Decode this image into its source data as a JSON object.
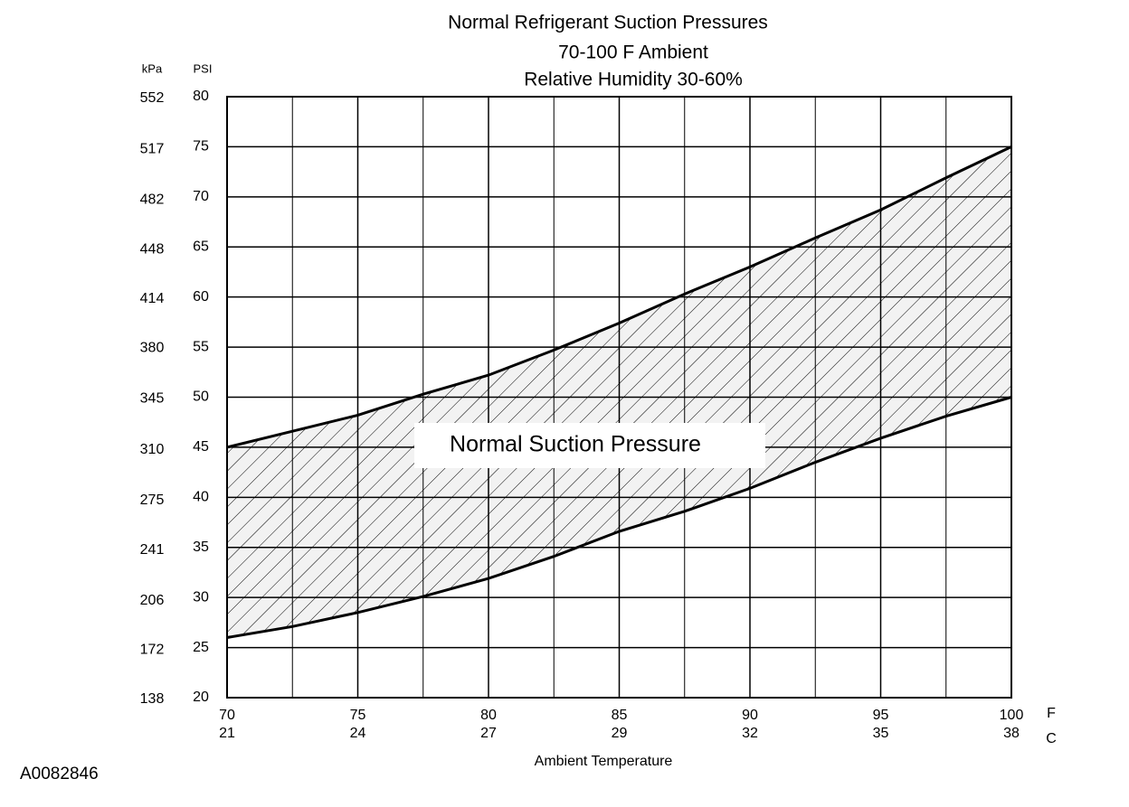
{
  "chart_data": {
    "type": "band",
    "title": [
      "Normal  Refrigerant  Suction  Pressures",
      "70-100 F Ambient",
      "Relative Humidity 30-60%"
    ],
    "annotation": "Normal Suction Pressure",
    "figure_id": "A0082846",
    "xlabel": "Ambient Temperature",
    "x_unit": "F",
    "x2_unit": "C",
    "ylabel": "PSI",
    "y2label": "kPa",
    "x": [
      70,
      72.5,
      75,
      77.5,
      80,
      82.5,
      85,
      87.5,
      90,
      92.5,
      95,
      97.5,
      100
    ],
    "series": [
      {
        "color": "#000000",
        "values": [
          45,
          46.6,
          48.2,
          50.3,
          52.2,
          54.7,
          57.4,
          60.3,
          63,
          65.9,
          68.7,
          71.9,
          75
        ]
      },
      {
        "color": "#000000",
        "values": [
          26,
          27.1,
          28.5,
          30.1,
          31.9,
          34.1,
          36.6,
          38.6,
          40.9,
          43.5,
          45.9,
          48.1,
          50
        ]
      }
    ],
    "xlim": [
      70,
      100
    ],
    "xticks": [
      70,
      75,
      80,
      85,
      90,
      95,
      100
    ],
    "xminor": [
      72.5,
      77.5,
      82.5,
      87.5,
      92.5,
      97.5
    ],
    "x2ticks": [
      "21",
      "24",
      "27",
      "29",
      "32",
      "35",
      "38"
    ],
    "ylim": [
      20,
      80
    ],
    "yticks": [
      20,
      25,
      30,
      35,
      40,
      45,
      50,
      55,
      60,
      65,
      70,
      75,
      80
    ],
    "y2lim": [
      138,
      552
    ],
    "y2ticks": [
      138,
      172,
      206,
      241,
      275,
      310,
      345,
      380,
      414,
      448,
      482,
      517,
      552
    ],
    "grid": true
  }
}
